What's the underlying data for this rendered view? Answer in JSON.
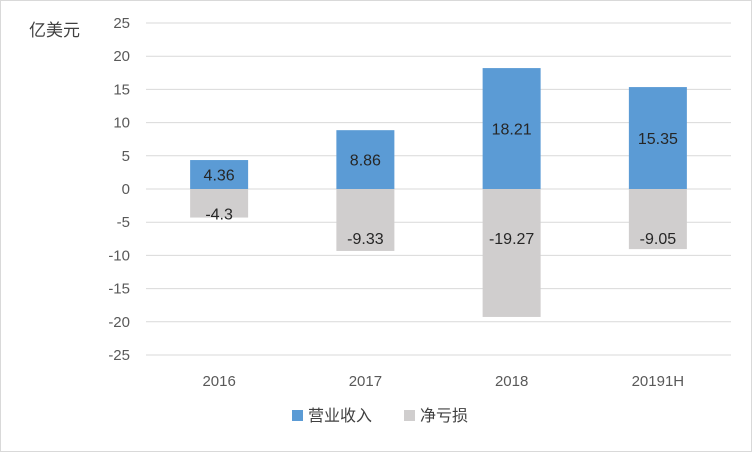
{
  "chart_data": {
    "type": "bar",
    "stacked": true,
    "unit_label": "亿美元",
    "categories": [
      "2016",
      "2017",
      "2018",
      "20191H"
    ],
    "series": [
      {
        "name": "营业收入",
        "values": [
          4.36,
          8.86,
          18.21,
          15.35
        ],
        "color": "#5b9bd5"
      },
      {
        "name": "净亏损",
        "values": [
          -4.3,
          -9.33,
          -19.27,
          -9.05
        ],
        "color": "#d0cece"
      }
    ],
    "ylim": [
      -25,
      25
    ],
    "yticks": [
      25,
      20,
      15,
      10,
      5,
      0,
      -5,
      -10,
      -15,
      -20,
      -25
    ],
    "grid": true,
    "legend": "bottom"
  }
}
